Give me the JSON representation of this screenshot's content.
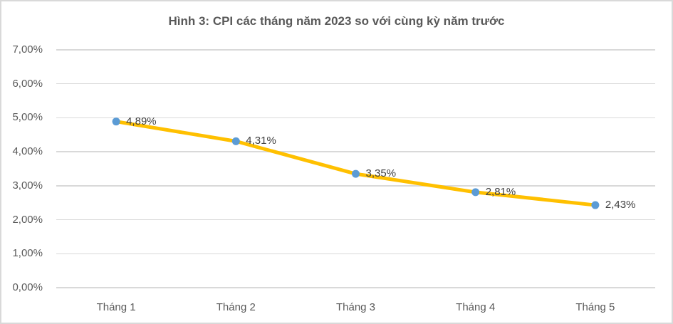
{
  "chart_data": {
    "type": "line",
    "title": "Hình 3: CPI các tháng năm 2023 so với cùng kỳ năm trước",
    "categories": [
      "Tháng 1",
      "Tháng 2",
      "Tháng 3",
      "Tháng 4",
      "Tháng 5"
    ],
    "values": [
      4.89,
      4.31,
      3.35,
      2.81,
      2.43
    ],
    "data_labels": [
      "4,89%",
      "4,31%",
      "3,35%",
      "2,81%",
      "2,43%"
    ],
    "y_tick_labels": [
      "0,00%",
      "1,00%",
      "2,00%",
      "3,00%",
      "4,00%",
      "5,00%",
      "6,00%",
      "7,00%"
    ],
    "ylim": [
      0,
      7
    ],
    "y_step": 1,
    "grid": true,
    "legend_position": "none",
    "xlabel": "",
    "ylabel": "",
    "colors": {
      "line": "#FFC000",
      "marker": "#5B9BD5",
      "gridline": "#D9D9D9",
      "border": "#D9D9D9",
      "title_text": "#595959",
      "axis_text": "#595959",
      "data_label_text": "#404040"
    }
  }
}
